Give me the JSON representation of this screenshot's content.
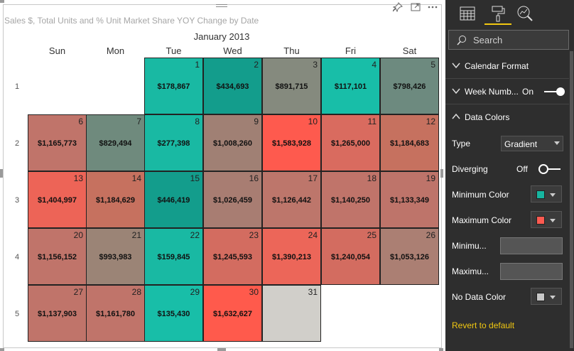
{
  "visual": {
    "title": "Sales $, Total Units and % Unit Market Share YOY Change by Date",
    "icons": [
      "pin-icon",
      "focus-mode-icon",
      "more-options-icon"
    ],
    "month_label": "January 2013",
    "weekdays": [
      "Sun",
      "Mon",
      "Tue",
      "Wed",
      "Thu",
      "Fri",
      "Sat"
    ],
    "weeks": [
      "1",
      "2",
      "3",
      "4",
      "5"
    ],
    "days": [
      {
        "day": "1",
        "value": "$178,867",
        "color": "#19b9a3"
      },
      {
        "day": "2",
        "value": "$434,693",
        "color": "#139d8c"
      },
      {
        "day": "3",
        "value": "$891,715",
        "color": "#858a7e"
      },
      {
        "day": "4",
        "value": "$117,101",
        "color": "#18bea8"
      },
      {
        "day": "5",
        "value": "$798,426",
        "color": "#6d8a7f"
      },
      {
        "day": "6",
        "value": "$1,165,773",
        "color": "#c0746a"
      },
      {
        "day": "7",
        "value": "$829,494",
        "color": "#6f8a7d"
      },
      {
        "day": "8",
        "value": "$277,398",
        "color": "#19b9a3"
      },
      {
        "day": "9",
        "value": "$1,008,260",
        "color": "#a08074"
      },
      {
        "day": "10",
        "value": "$1,583,928",
        "color": "#fe5a4e"
      },
      {
        "day": "11",
        "value": "$1,265,000",
        "color": "#d96b5f"
      },
      {
        "day": "12",
        "value": "$1,184,683",
        "color": "#c6715f"
      },
      {
        "day": "13",
        "value": "$1,404,997",
        "color": "#ed6457"
      },
      {
        "day": "14",
        "value": "$1,184,629",
        "color": "#c6715f"
      },
      {
        "day": "15",
        "value": "$446,419",
        "color": "#139d8c"
      },
      {
        "day": "16",
        "value": "$1,026,459",
        "color": "#a87d72"
      },
      {
        "day": "17",
        "value": "$1,126,442",
        "color": "#bd766b"
      },
      {
        "day": "18",
        "value": "$1,140,250",
        "color": "#c0746a"
      },
      {
        "day": "19",
        "value": "$1,133,349",
        "color": "#be746a"
      },
      {
        "day": "20",
        "value": "$1,156,152",
        "color": "#c0746a"
      },
      {
        "day": "21",
        "value": "$993,983",
        "color": "#9b8476"
      },
      {
        "day": "22",
        "value": "$159,845",
        "color": "#19b9a3"
      },
      {
        "day": "23",
        "value": "$1,245,593",
        "color": "#d36c60"
      },
      {
        "day": "24",
        "value": "$1,390,213",
        "color": "#ec6659"
      },
      {
        "day": "25",
        "value": "$1,240,054",
        "color": "#d36c60"
      },
      {
        "day": "26",
        "value": "$1,053,126",
        "color": "#ab7f73"
      },
      {
        "day": "27",
        "value": "$1,137,903",
        "color": "#c0746a"
      },
      {
        "day": "28",
        "value": "$1,161,780",
        "color": "#c0746a"
      },
      {
        "day": "29",
        "value": "$135,430",
        "color": "#18bea8"
      },
      {
        "day": "30",
        "value": "$1,632,627",
        "color": "#ff5a4c"
      },
      {
        "day": "31",
        "value": "",
        "color": "#d1cfca"
      }
    ]
  },
  "panel": {
    "tabs": [
      "fields-icon",
      "format-paint-roller-icon",
      "analytics-icon"
    ],
    "search": {
      "placeholder": "Search"
    },
    "sections": {
      "calendar_format": "Calendar Format",
      "week_numbers": "Week Numb...",
      "week_numbers_state": "On",
      "data_colors": "Data Colors"
    },
    "type_label": "Type",
    "type_value": "Gradient",
    "diverging_label": "Diverging",
    "diverging_state": "Off",
    "min_color_label": "Minimum Color",
    "min_color": "#17b5a0",
    "max_color_label": "Maximum Color",
    "max_color": "#fd5a50",
    "minimum_label": "Minimu...",
    "maximum_label": "Maximu...",
    "no_data_label": "No Data Color",
    "no_data_color": "#c8c8c8",
    "revert_label": "Revert to default"
  }
}
